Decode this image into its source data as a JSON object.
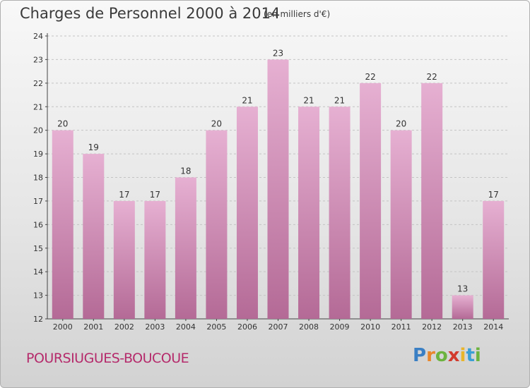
{
  "title": "Charges de Personnel 2000 à 2014",
  "subtitle": "(en milliers d'€)",
  "commune": "POURSIUGUES-BOUCOUE",
  "logo": {
    "letters": [
      "P",
      "r",
      "o",
      "x",
      "i",
      "t",
      "i"
    ],
    "colors": [
      "#3a7fc4",
      "#e9862a",
      "#6cb33f",
      "#d23b2d",
      "#e9b52a",
      "#3a9fd4",
      "#6cb33f"
    ]
  },
  "colors": {
    "bar_top": "#e6b0d2",
    "bar_bottom": "#b46a96",
    "title": "#3a3a3a",
    "commune": "#b52a6b"
  },
  "chart_data": {
    "type": "bar",
    "title": "Charges de Personnel 2000 à 2014",
    "subtitle": "(en milliers d'€)",
    "categories": [
      "2000",
      "2001",
      "2002",
      "2003",
      "2004",
      "2005",
      "2006",
      "2007",
      "2008",
      "2009",
      "2010",
      "2011",
      "2012",
      "2013",
      "2014"
    ],
    "values": [
      20,
      19,
      17,
      17,
      18,
      20,
      21,
      23,
      21,
      21,
      22,
      20,
      22,
      13,
      17
    ],
    "ylim": [
      12,
      24
    ],
    "yticks": [
      12,
      13,
      14,
      15,
      16,
      17,
      18,
      19,
      20,
      21,
      22,
      23,
      24
    ],
    "grid": true,
    "data_labels": true
  }
}
